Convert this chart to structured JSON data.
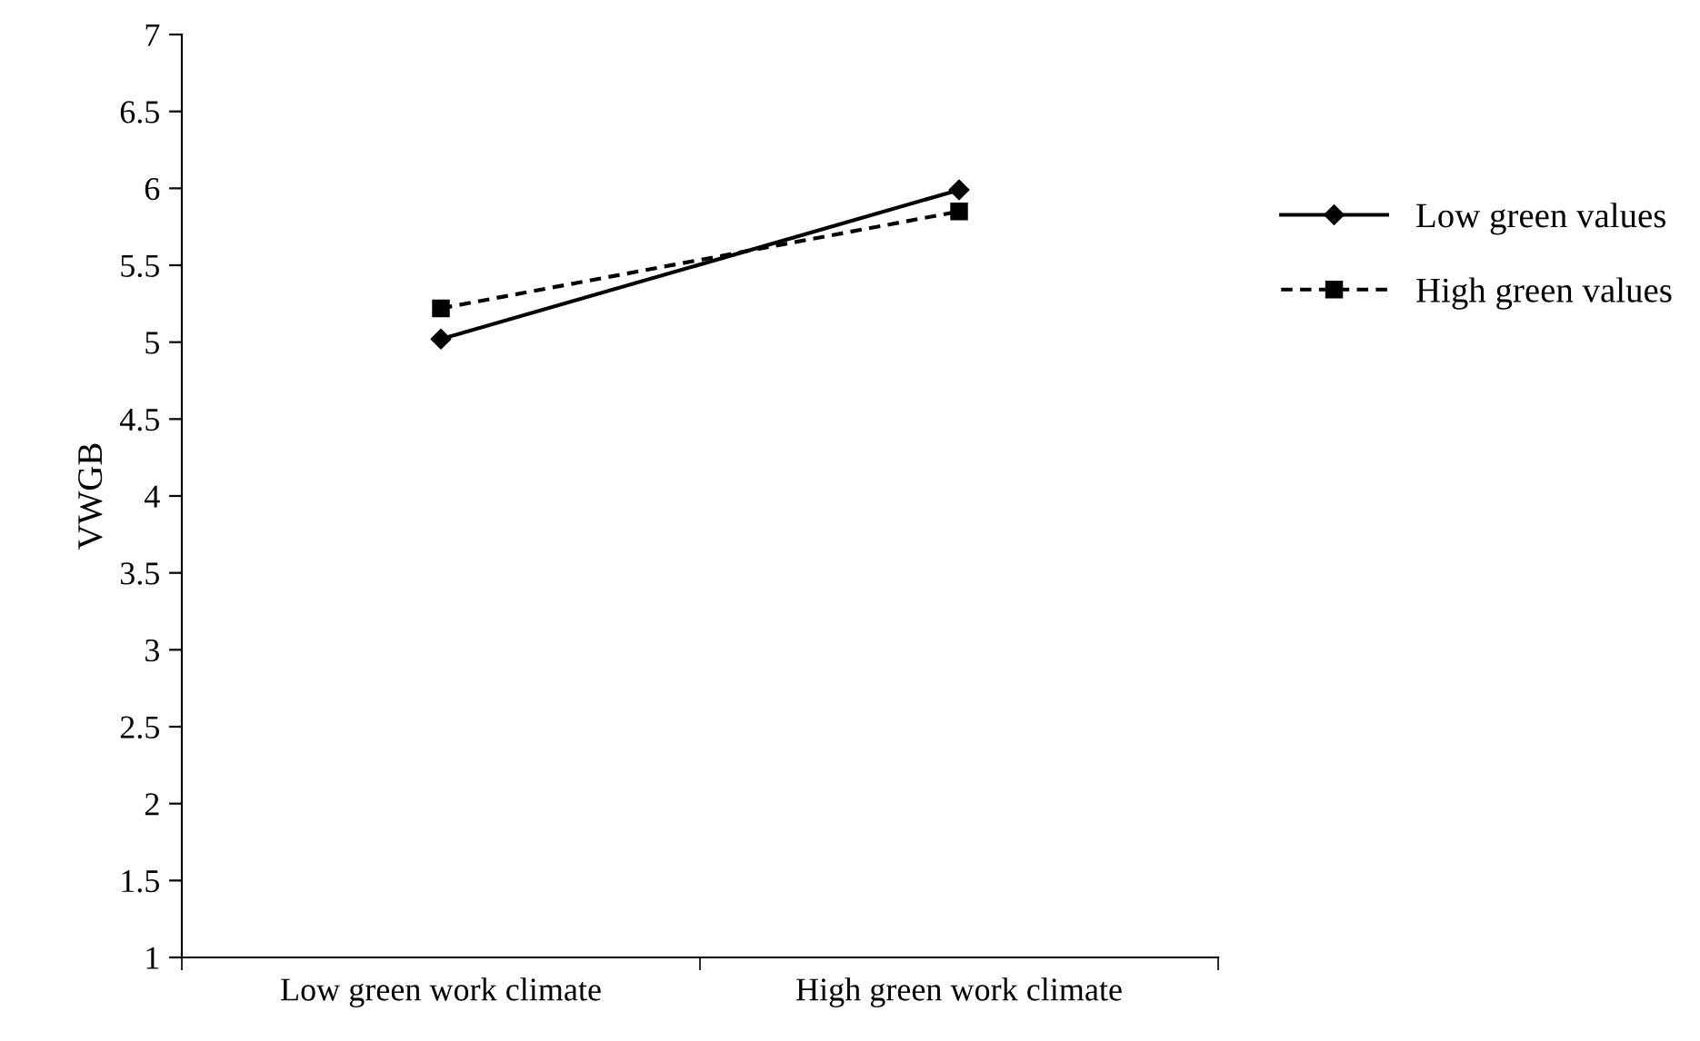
{
  "chart_data": {
    "type": "line",
    "ylabel": "VWGB",
    "categories": [
      "Low green work climate",
      "High green work climate"
    ],
    "series": [
      {
        "name": "Low green values",
        "color": "#000000",
        "values": [
          5.02,
          5.99
        ],
        "marker": "diamond",
        "line_style": "solid"
      },
      {
        "name": "High green values",
        "color": "#000000",
        "values": [
          5.22,
          5.85
        ],
        "marker": "square",
        "line_style": "dashed"
      }
    ],
    "ylim": [
      1,
      7
    ],
    "yticks": [
      1,
      1.5,
      2,
      2.5,
      3,
      3.5,
      4,
      4.5,
      5,
      5.5,
      6,
      6.5,
      7
    ],
    "grid": false,
    "legend": "right"
  }
}
